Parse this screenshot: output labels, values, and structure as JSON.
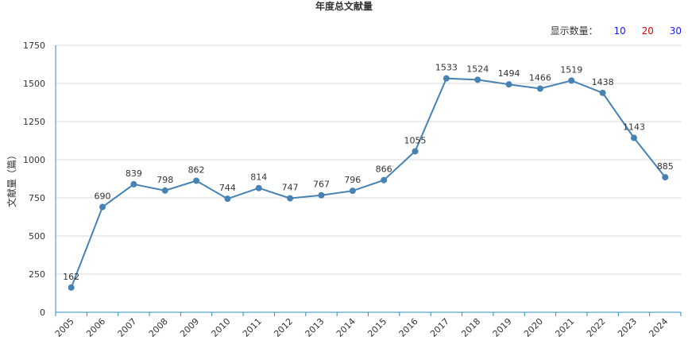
{
  "count_selector": {
    "label": "显示数量：",
    "options": [
      "10",
      "20",
      "30"
    ]
  },
  "colors": {
    "line": "#4682b4",
    "axis": "#2b8fb0",
    "grid": "#d9d9d9",
    "option_10": "#1a1aff",
    "option_20": "#e60000",
    "option_30": "#1a1aff"
  },
  "chart_data": {
    "type": "line",
    "title": "年度总文献量",
    "xlabel": "",
    "ylabel": "文献量（篇）",
    "categories": [
      "2005",
      "2006",
      "2007",
      "2008",
      "2009",
      "2010",
      "2011",
      "2012",
      "2013",
      "2014",
      "2015",
      "2016",
      "2017",
      "2018",
      "2019",
      "2020",
      "2021",
      "2022",
      "2023",
      "2024"
    ],
    "values": [
      162,
      690,
      839,
      798,
      862,
      744,
      814,
      747,
      767,
      796,
      866,
      1055,
      1533,
      1524,
      1494,
      1466,
      1519,
      1438,
      1143,
      885
    ],
    "ylim": [
      0,
      1750
    ],
    "yticks": [
      0,
      250,
      500,
      750,
      1000,
      1250,
      1500,
      1750
    ],
    "grid": true,
    "data_labels": true,
    "legend": "none"
  }
}
